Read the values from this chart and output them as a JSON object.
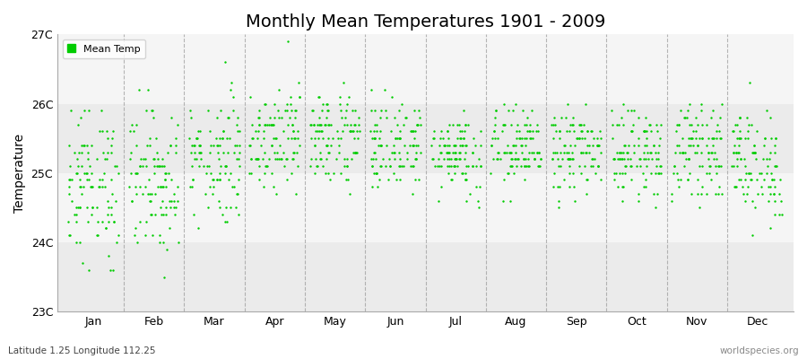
{
  "title": "Monthly Mean Temperatures 1901 - 2009",
  "ylabel": "Temperature",
  "xlabel": "",
  "subtitle_lat_lon": "Latitude 1.25 Longitude 112.25",
  "watermark": "worldspecies.org",
  "ylim": [
    23.0,
    27.0
  ],
  "ytick_labels": [
    "23C",
    "24C",
    "25C",
    "26C",
    "27C"
  ],
  "ytick_values": [
    23.0,
    24.0,
    25.0,
    26.0,
    27.0
  ],
  "months": [
    "Jan",
    "Feb",
    "Mar",
    "Apr",
    "May",
    "Jun",
    "Jul",
    "Aug",
    "Sep",
    "Oct",
    "Nov",
    "Dec"
  ],
  "n_years": 109,
  "year_start": 1901,
  "year_end": 2009,
  "dot_color": "#00cc00",
  "dot_size": 3,
  "legend_label": "Mean Temp",
  "legend_marker_color": "#00cc00",
  "background_color": "#ffffff",
  "plot_bg_color_light": "#ebebeb",
  "plot_bg_color_dark": "#f5f5f5",
  "dashed_line_color": "#999999",
  "title_fontsize": 14,
  "axis_label_fontsize": 10,
  "tick_label_fontsize": 9,
  "monthly_mean_temps": [
    24.82,
    24.9,
    25.22,
    25.55,
    25.52,
    25.4,
    25.3,
    25.35,
    25.3,
    25.28,
    25.33,
    25.12
  ],
  "monthly_std_temps": [
    0.55,
    0.52,
    0.45,
    0.38,
    0.35,
    0.32,
    0.3,
    0.3,
    0.3,
    0.3,
    0.32,
    0.4
  ],
  "monthly_min_temps": [
    23.6,
    23.5,
    24.1,
    24.7,
    24.7,
    24.6,
    24.5,
    24.6,
    24.5,
    24.5,
    24.5,
    23.9
  ],
  "monthly_max_temps": [
    25.9,
    26.2,
    26.7,
    26.9,
    26.6,
    26.3,
    26.2,
    26.3,
    26.1,
    26.1,
    26.4,
    26.6
  ],
  "band_colors": [
    "#ebebeb",
    "#f5f5f5"
  ],
  "band_boundaries": [
    23.0,
    24.0,
    25.0,
    26.0,
    27.0
  ]
}
